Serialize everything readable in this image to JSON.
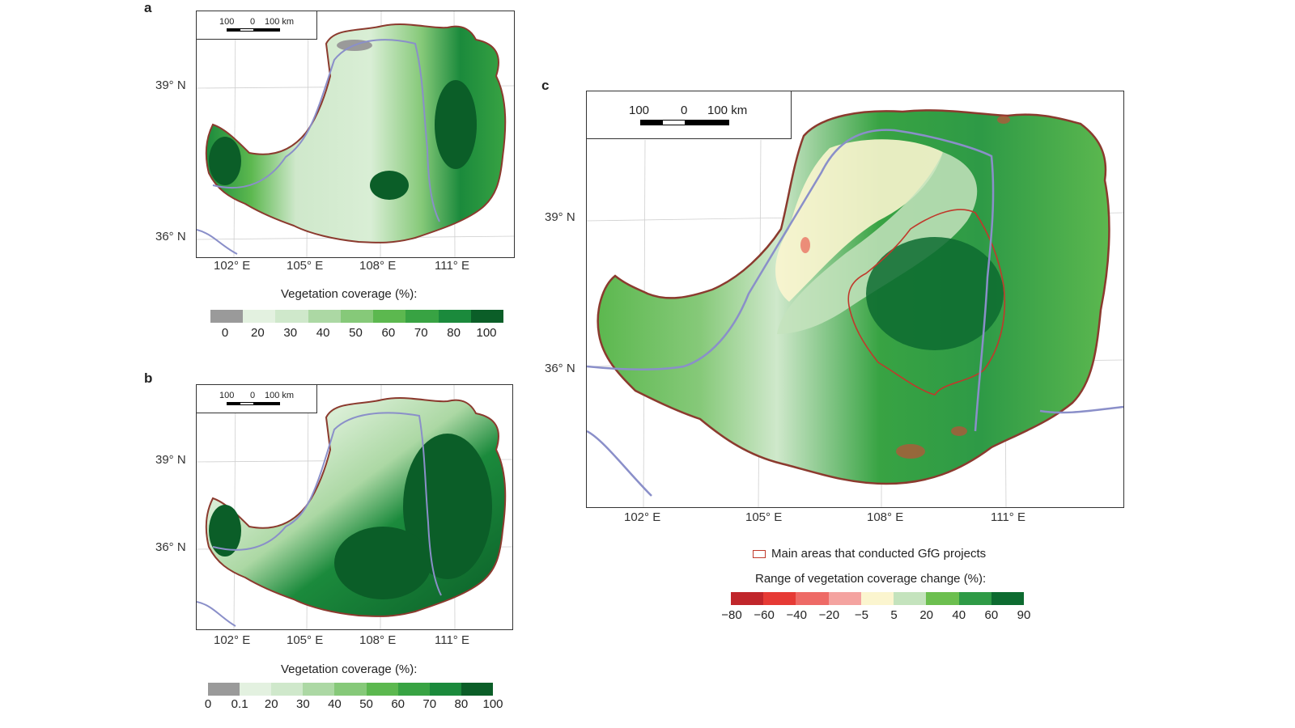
{
  "panel_a": {
    "letter": "a",
    "scale": {
      "left": "100",
      "zero": "0",
      "right": "100 km"
    },
    "lat_labels": [
      "39° N",
      "36° N"
    ],
    "lon_labels": [
      "102° E",
      "105° E",
      "108° E",
      "111° E"
    ],
    "legend": {
      "title": "Vegetation coverage (%):",
      "colors": [
        "#9a9a9a",
        "#e3f1e0",
        "#cfe8cb",
        "#acd8a4",
        "#86c979",
        "#5cb84f",
        "#38a343",
        "#1b8a3c",
        "#0b5e28"
      ],
      "ticks": [
        "0",
        "20",
        "30",
        "40",
        "50",
        "60",
        "70",
        "80",
        "100"
      ]
    }
  },
  "panel_b": {
    "letter": "b",
    "scale": {
      "left": "100",
      "zero": "0",
      "right": "100 km"
    },
    "lat_labels": [
      "39° N",
      "36° N"
    ],
    "lon_labels": [
      "102° E",
      "105° E",
      "108° E",
      "111° E"
    ],
    "legend": {
      "title": "Vegetation coverage (%):",
      "colors": [
        "#9a9a9a",
        "#e3f1e0",
        "#cfe8cb",
        "#acd8a4",
        "#86c979",
        "#5cb84f",
        "#38a343",
        "#1b8a3c",
        "#0b5e28"
      ],
      "ticks": [
        "0",
        "0.1",
        "20",
        "30",
        "40",
        "50",
        "60",
        "70",
        "80",
        "100"
      ]
    }
  },
  "panel_c": {
    "letter": "c",
    "scale": {
      "left": "100",
      "zero": "0",
      "right": "100 km"
    },
    "lat_labels": [
      "39° N",
      "36° N"
    ],
    "lon_labels": [
      "102° E",
      "105° E",
      "108° E",
      "111° E"
    ],
    "gfg_legend": "Main areas that conducted GfG projects",
    "legend": {
      "title": "Range of vegetation coverage change (%):",
      "colors": [
        "#c0262b",
        "#e63a35",
        "#ee6a66",
        "#f4a3a0",
        "#fbf5cf",
        "#c4e3bd",
        "#6cbf4f",
        "#2e9a46",
        "#0d6b30"
      ],
      "ticks": [
        "−80",
        "−60",
        "−40",
        "−20",
        "−5",
        "5",
        "20",
        "40",
        "60",
        "90"
      ]
    }
  }
}
